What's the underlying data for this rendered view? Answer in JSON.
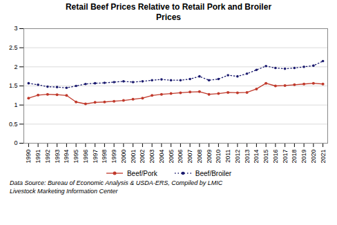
{
  "chart_data": {
    "type": "line",
    "title": "Retail Beef Prices Relative to Retail Pork and Broiler\nPrices",
    "x": [
      1990,
      1991,
      1992,
      1993,
      1994,
      1995,
      1996,
      1997,
      1998,
      1999,
      2000,
      2001,
      2002,
      2003,
      2004,
      2005,
      2006,
      2007,
      2008,
      2009,
      2010,
      2011,
      2012,
      2013,
      2014,
      2015,
      2016,
      2017,
      2018,
      2019,
      2020,
      2021
    ],
    "series": [
      {
        "name": "Beef/Pork",
        "color": "#c0392b",
        "line_style": "solid",
        "marker": "circle",
        "values": [
          1.18,
          1.26,
          1.28,
          1.27,
          1.25,
          1.08,
          1.03,
          1.07,
          1.08,
          1.1,
          1.12,
          1.15,
          1.18,
          1.25,
          1.28,
          1.3,
          1.32,
          1.34,
          1.35,
          1.28,
          1.3,
          1.33,
          1.32,
          1.33,
          1.42,
          1.57,
          1.5,
          1.51,
          1.53,
          1.55,
          1.57,
          1.55
        ]
      },
      {
        "name": "Beef/Broiler",
        "color": "#1a1a6e",
        "line_style": "dotted",
        "marker": "point",
        "values": [
          1.57,
          1.53,
          1.48,
          1.47,
          1.45,
          1.5,
          1.55,
          1.57,
          1.58,
          1.6,
          1.62,
          1.6,
          1.62,
          1.65,
          1.67,
          1.65,
          1.65,
          1.68,
          1.75,
          1.65,
          1.68,
          1.78,
          1.75,
          1.82,
          1.92,
          2.02,
          1.97,
          1.95,
          1.97,
          2.0,
          2.03,
          2.15
        ]
      }
    ],
    "xlim": [
      1989.5,
      2021.5
    ],
    "xticks": [
      1990,
      1991,
      1992,
      1993,
      1994,
      1995,
      1996,
      1997,
      1998,
      1999,
      2000,
      2001,
      2002,
      2003,
      2004,
      2005,
      2006,
      2007,
      2008,
      2009,
      2010,
      2011,
      2012,
      2013,
      2014,
      2015,
      2016,
      2017,
      2018,
      2019,
      2020,
      2021
    ],
    "ylim": [
      0,
      3
    ],
    "yticks": [
      0,
      0.5,
      1,
      1.5,
      2,
      2.5,
      3
    ],
    "grid": true,
    "legend": "bottom",
    "annotations": [
      "Data Source: Bureau of Economic Analysis & USDA-ERS, Compiled by LMIC",
      "Livestock Marketing Information Center"
    ]
  }
}
